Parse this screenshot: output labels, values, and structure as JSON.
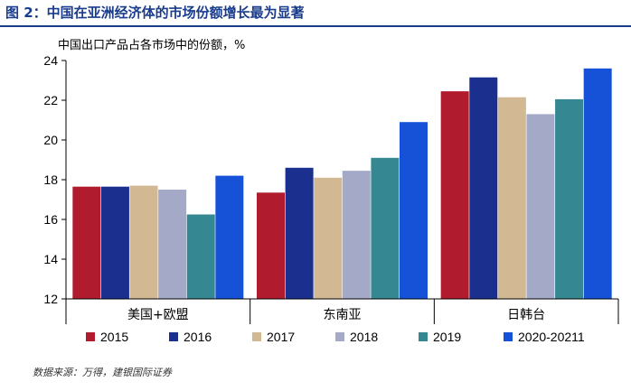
{
  "title": "图 2：中国在亚洲经济体的市场份额增长最为显著",
  "source": "数据来源：万得，建银国际证券",
  "chart_data": {
    "type": "bar",
    "title": "图 2：中国在亚洲经济体的市场份额增长最为显著",
    "ylabel": "中国出口产品占各市场中的份额，%",
    "xlabel": "",
    "ylim": [
      12,
      24
    ],
    "yticks": [
      12,
      14,
      16,
      18,
      20,
      22,
      24
    ],
    "grid": false,
    "legend_position": "bottom",
    "categories": [
      "美国+欧盟",
      "东南亚",
      "日韩台"
    ],
    "series": [
      {
        "name": "2015",
        "color": "#b01c2e",
        "values": [
          17.65,
          17.35,
          22.45
        ]
      },
      {
        "name": "2016",
        "color": "#1b2f8f",
        "values": [
          17.65,
          18.6,
          23.15
        ]
      },
      {
        "name": "2017",
        "color": "#d2b994",
        "values": [
          17.7,
          18.1,
          22.15
        ]
      },
      {
        "name": "2018",
        "color": "#a3a9c6",
        "values": [
          17.5,
          18.45,
          21.3
        ]
      },
      {
        "name": "2019",
        "color": "#358891",
        "values": [
          16.25,
          19.1,
          22.05
        ]
      },
      {
        "name": "2020-20211",
        "color": "#1552d8",
        "values": [
          18.2,
          20.9,
          23.6
        ]
      }
    ]
  }
}
